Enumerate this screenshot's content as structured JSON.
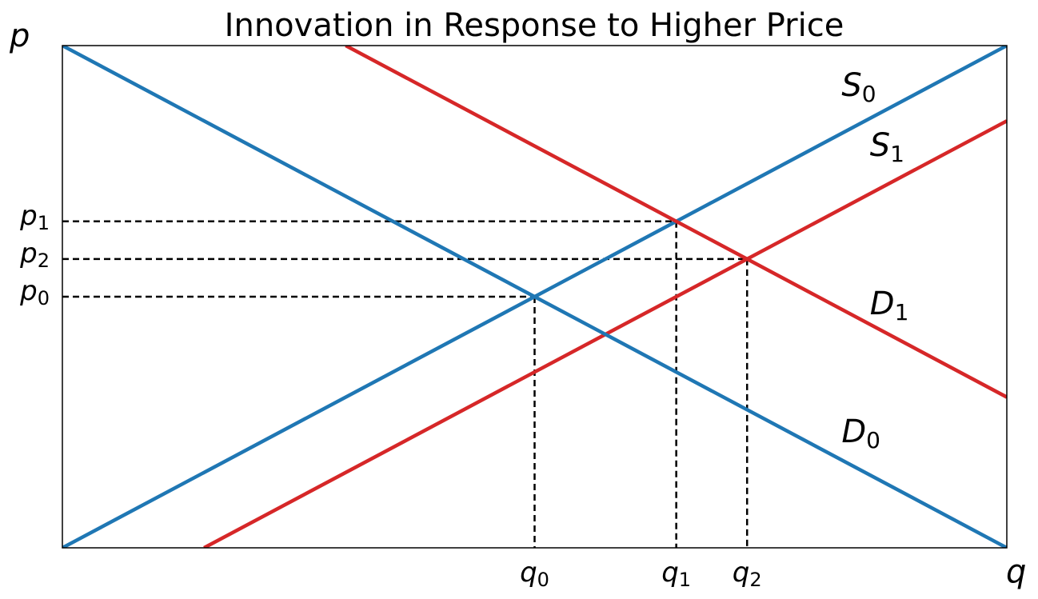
{
  "chart_data": {
    "type": "line",
    "title": "Innovation in Response to Higher Price",
    "xlabel": "q",
    "ylabel": "p",
    "xlim": [
      0,
      10
    ],
    "ylim": [
      0,
      10
    ],
    "grid": false,
    "legend": "none",
    "series": [
      {
        "name": "S_0",
        "base": "S",
        "sub": "0",
        "color": "#1f77b4",
        "x": [
          0,
          10
        ],
        "y": [
          0,
          10
        ],
        "label_at": [
          8.25,
          9.0
        ]
      },
      {
        "name": "S_1",
        "base": "S",
        "sub": "1",
        "color": "#d62728",
        "x": [
          1.5,
          10
        ],
        "y": [
          0,
          8.5
        ],
        "label_at": [
          8.55,
          7.8
        ]
      },
      {
        "name": "D_0",
        "base": "D",
        "sub": "0",
        "color": "#1f77b4",
        "x": [
          0,
          10
        ],
        "y": [
          10,
          0
        ],
        "label_at": [
          8.25,
          2.1
        ]
      },
      {
        "name": "D_1",
        "base": "D",
        "sub": "1",
        "color": "#d62728",
        "x": [
          3.0,
          10
        ],
        "y": [
          10,
          3.0
        ],
        "label_at": [
          8.55,
          4.65
        ]
      }
    ],
    "x_ticks": [
      {
        "base": "q",
        "sub": "0",
        "value": 5.0
      },
      {
        "base": "q",
        "sub": "1",
        "value": 6.5
      },
      {
        "base": "q",
        "sub": "2",
        "value": 7.25
      }
    ],
    "y_ticks": [
      {
        "base": "p",
        "sub": "1",
        "value": 6.5
      },
      {
        "base": "p",
        "sub": "2",
        "value": 5.75
      },
      {
        "base": "p",
        "sub": "0",
        "value": 5.0
      }
    ],
    "equilibria": [
      {
        "x": 5.0,
        "y": 5.0
      },
      {
        "x": 6.5,
        "y": 6.5
      },
      {
        "x": 7.25,
        "y": 5.75
      }
    ]
  }
}
